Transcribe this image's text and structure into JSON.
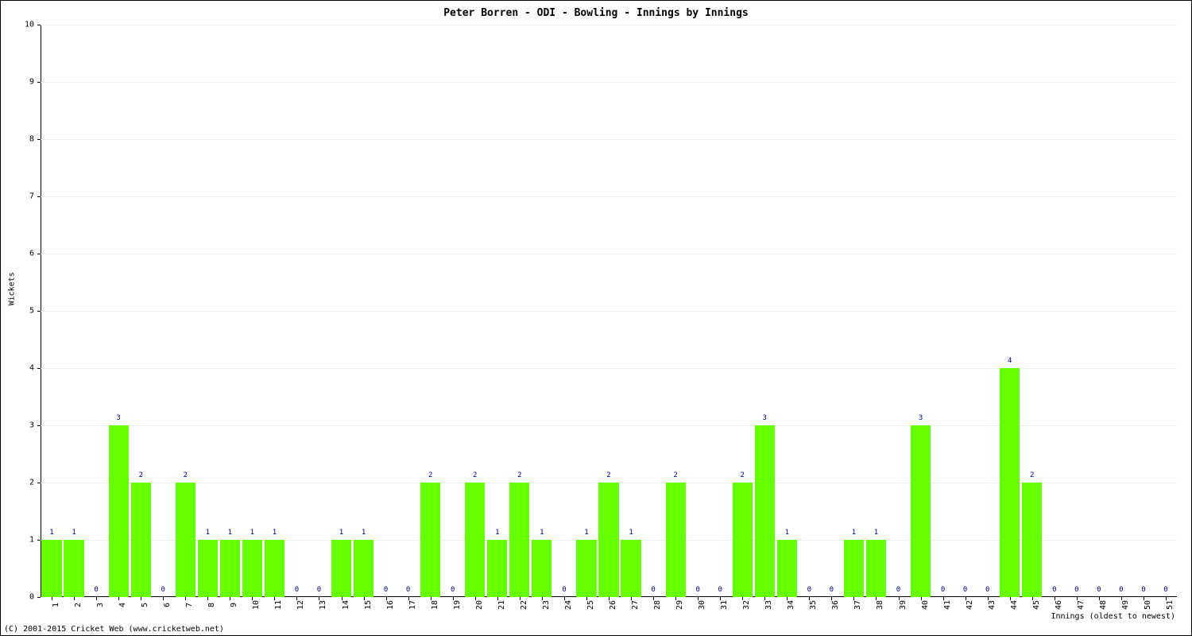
{
  "chart": {
    "type": "bar",
    "title": "Peter Borren - ODI - Bowling - Innings by Innings",
    "ylabel": "Wickets",
    "xlabel": "Innings (oldest to newest)",
    "copyright": "(C) 2001-2015 Cricket Web (www.cricketweb.net)",
    "ylim": [
      0,
      10
    ],
    "ytick_step": 1,
    "title_fontsize": 13,
    "label_fontsize": 10,
    "bar_color": "#66ff00",
    "value_label_color": "#000080",
    "grid_color": "#eeeeee",
    "background_color": "#ffffff",
    "bar_width": 0.9,
    "categories": [
      "1",
      "2",
      "3",
      "4",
      "5",
      "6",
      "7",
      "8",
      "9",
      "10",
      "11",
      "12",
      "13",
      "14",
      "15",
      "16",
      "17",
      "18",
      "19",
      "20",
      "21",
      "22",
      "23",
      "24",
      "25",
      "26",
      "27",
      "28",
      "29",
      "30",
      "31",
      "32",
      "33",
      "34",
      "35",
      "36",
      "37",
      "38",
      "39",
      "40",
      "41",
      "42",
      "43",
      "44",
      "45",
      "46",
      "47",
      "48",
      "49",
      "50",
      "51"
    ],
    "values": [
      1,
      1,
      0,
      3,
      2,
      0,
      2,
      1,
      1,
      1,
      1,
      0,
      0,
      1,
      1,
      0,
      0,
      2,
      0,
      2,
      1,
      2,
      1,
      0,
      1,
      2,
      1,
      0,
      2,
      0,
      0,
      2,
      3,
      1,
      0,
      0,
      1,
      1,
      0,
      3,
      0,
      0,
      0,
      4,
      2,
      0,
      0,
      0,
      0,
      0,
      0
    ]
  }
}
